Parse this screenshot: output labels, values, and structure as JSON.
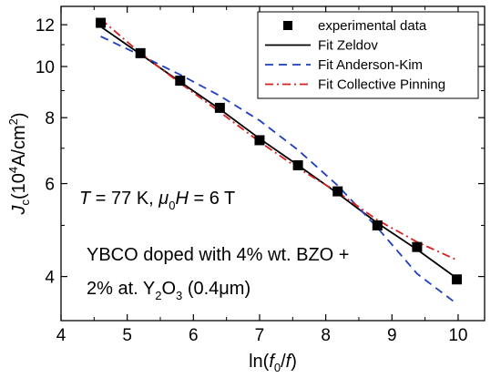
{
  "chart_data": {
    "type": "scatter",
    "x_scale": "linear",
    "y_scale": "log",
    "xlim": [
      4,
      10.4
    ],
    "ylim": [
      3.3,
      13
    ],
    "x_ticks": [
      4,
      5,
      6,
      7,
      8,
      9,
      10
    ],
    "y_ticks": [
      4,
      6,
      8,
      10,
      12
    ],
    "xlabel": {
      "pre": "ln(",
      "italic_a": "f",
      "sub": "0",
      "mid": "/",
      "italic_b": "f",
      "post": ")"
    },
    "ylabel": {
      "italic": "J",
      "sub": "c",
      "pre": "(10",
      "sup": "4",
      "mid": "A/cm",
      "sup2": "2",
      "post": ")"
    },
    "series": [
      {
        "name": "experimental data",
        "kind": "markers",
        "color": "#000000",
        "x": [
          4.6,
          5.2,
          5.8,
          6.4,
          7.0,
          7.58,
          8.18,
          8.78,
          9.38,
          9.98
        ],
        "y": [
          12.1,
          10.6,
          9.4,
          8.35,
          7.25,
          6.5,
          5.8,
          5.0,
          4.55,
          3.95
        ]
      },
      {
        "name": "Fit Zeldov",
        "kind": "line",
        "color": "#000000",
        "dash": "none",
        "x": [
          4.6,
          5.2,
          5.8,
          6.4,
          7.0,
          7.58,
          8.18,
          8.78,
          9.38,
          9.98
        ],
        "y": [
          11.9,
          10.55,
          9.35,
          8.3,
          7.3,
          6.5,
          5.75,
          5.05,
          4.5,
          3.97
        ]
      },
      {
        "name": "Fit Anderson-Kim",
        "kind": "line",
        "color": "#1f3fbf",
        "dash": "9,6",
        "x": [
          4.6,
          5.2,
          5.8,
          6.4,
          7.0,
          7.58,
          8.18,
          8.78,
          9.38,
          9.98
        ],
        "y": [
          11.4,
          10.5,
          9.65,
          8.8,
          7.9,
          6.95,
          5.95,
          4.95,
          4.05,
          3.55
        ]
      },
      {
        "name": "Fit Collective Pinning",
        "kind": "line",
        "color": "#d62020",
        "dash": "9,4,2,4",
        "x": [
          4.6,
          5.2,
          5.8,
          6.4,
          7.0,
          7.58,
          8.18,
          8.78,
          9.38,
          9.98
        ],
        "y": [
          12.3,
          10.6,
          9.3,
          8.2,
          7.2,
          6.42,
          5.78,
          5.12,
          4.65,
          4.3
        ]
      }
    ],
    "legend": {
      "placement": "top-right"
    },
    "annotations": [
      {
        "parts": [
          {
            "t": "T",
            "style": "italic"
          },
          {
            "t": " = 77 K, ",
            "style": "normal"
          },
          {
            "t": "μ",
            "style": "italic"
          },
          {
            "t": "0",
            "style": "sub"
          },
          {
            "t": "H",
            "style": "italic"
          },
          {
            "t": " = 6 T",
            "style": "normal"
          }
        ]
      },
      {
        "parts": [
          {
            "t": "YBCO doped with 4% wt. BZO +",
            "style": "normal"
          }
        ]
      },
      {
        "parts": [
          {
            "t": "2% at. Y",
            "style": "normal"
          },
          {
            "t": "2",
            "style": "sub"
          },
          {
            "t": "O",
            "style": "normal"
          },
          {
            "t": "3",
            "style": "sub"
          },
          {
            "t": " (0.4μm)",
            "style": "normal"
          }
        ]
      }
    ]
  }
}
